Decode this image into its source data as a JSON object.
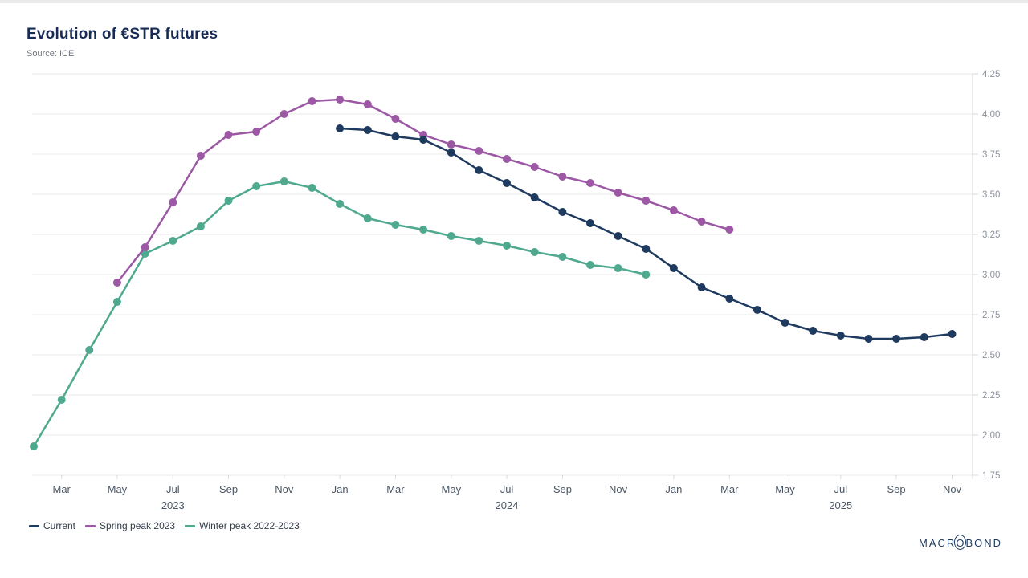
{
  "header": {
    "title": "Evolution of €STR futures",
    "source": "Source: ICE"
  },
  "logo": {
    "text": "MACROBOND"
  },
  "chart_data": {
    "type": "line",
    "title": "Evolution of €STR futures",
    "subtitle": "Source: ICE",
    "xlabel": "",
    "ylabel": "",
    "ylim": [
      1.75,
      4.25
    ],
    "y_ticks": [
      1.75,
      2.0,
      2.25,
      2.5,
      2.75,
      3.0,
      3.25,
      3.5,
      3.75,
      4.0,
      4.25
    ],
    "y_axis_side": "right",
    "grid": "horizontal",
    "legend_position": "bottom-left",
    "marker": "circle",
    "x_months": [
      "Feb 2023",
      "Mar 2023",
      "Apr 2023",
      "May 2023",
      "Jun 2023",
      "Jul 2023",
      "Aug 2023",
      "Sep 2023",
      "Oct 2023",
      "Nov 2023",
      "Dec 2023",
      "Jan 2024",
      "Feb 2024",
      "Mar 2024",
      "Apr 2024",
      "May 2024",
      "Jun 2024",
      "Jul 2024",
      "Aug 2024",
      "Sep 2024",
      "Oct 2024",
      "Nov 2024",
      "Dec 2024",
      "Jan 2025",
      "Feb 2025",
      "Mar 2025",
      "Apr 2025",
      "May 2025",
      "Jun 2025",
      "Jul 2025",
      "Aug 2025",
      "Sep 2025",
      "Oct 2025",
      "Nov 2025"
    ],
    "x_ticks": [
      {
        "label": "Mar",
        "month_index": 1
      },
      {
        "label": "May",
        "month_index": 3
      },
      {
        "label": "Jul",
        "month_index": 5
      },
      {
        "label": "Sep",
        "month_index": 7
      },
      {
        "label": "Nov",
        "month_index": 9
      },
      {
        "label": "Jan",
        "month_index": 11
      },
      {
        "label": "Mar",
        "month_index": 13
      },
      {
        "label": "May",
        "month_index": 15
      },
      {
        "label": "Jul",
        "month_index": 17
      },
      {
        "label": "Sep",
        "month_index": 19
      },
      {
        "label": "Nov",
        "month_index": 21
      },
      {
        "label": "Jan",
        "month_index": 23
      },
      {
        "label": "Mar",
        "month_index": 25
      },
      {
        "label": "May",
        "month_index": 27
      },
      {
        "label": "Jul",
        "month_index": 29
      },
      {
        "label": "Sep",
        "month_index": 31
      },
      {
        "label": "Nov",
        "month_index": 33
      }
    ],
    "year_labels": [
      {
        "label": "2023",
        "month_index": 5
      },
      {
        "label": "2024",
        "month_index": 17
      },
      {
        "label": "2025",
        "month_index": 29
      }
    ],
    "series": [
      {
        "name": "Current",
        "color": "#1e3a5f",
        "start_month": "Jan 2024",
        "start_month_index": 11,
        "values": [
          3.91,
          3.9,
          3.86,
          3.84,
          3.76,
          3.65,
          3.57,
          3.48,
          3.39,
          3.32,
          3.24,
          3.16,
          3.04,
          2.92,
          2.85,
          2.78,
          2.7,
          2.65,
          2.62,
          2.6,
          2.6,
          2.61,
          2.63
        ]
      },
      {
        "name": "Spring peak 2023",
        "color": "#9c58a5",
        "start_month": "May 2023",
        "start_month_index": 3,
        "values": [
          2.95,
          3.17,
          3.45,
          3.74,
          3.87,
          3.89,
          4.0,
          4.08,
          4.09,
          4.06,
          3.97,
          3.87,
          3.81,
          3.77,
          3.72,
          3.67,
          3.61,
          3.57,
          3.51,
          3.46,
          3.4,
          3.33,
          3.28
        ]
      },
      {
        "name": "Winter peak 2022-2023",
        "color": "#4fa98e",
        "start_month": "Feb 2023",
        "start_month_index": 0,
        "values": [
          1.93,
          2.22,
          2.53,
          2.83,
          3.13,
          3.21,
          3.3,
          3.46,
          3.55,
          3.58,
          3.54,
          3.44,
          3.35,
          3.31,
          3.28,
          3.24,
          3.21,
          3.18,
          3.14,
          3.11,
          3.06,
          3.04,
          3.0
        ]
      }
    ]
  }
}
